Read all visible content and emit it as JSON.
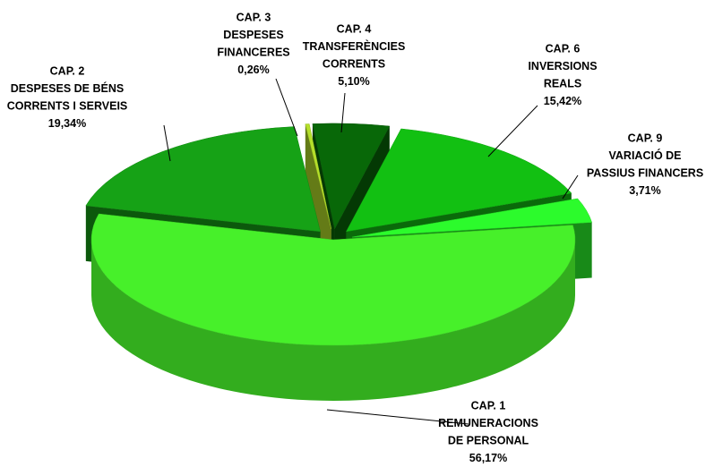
{
  "chart_data": {
    "type": "pie3d",
    "categories": [
      [
        "CAP. 1",
        "REMUNERACIONS",
        "DE PERSONAL"
      ],
      [
        "CAP. 2",
        "DESPESES DE BÉNS",
        "CORRENTS I SERVEIS"
      ],
      [
        "CAP. 3",
        "DESPESES",
        "FINANCERES"
      ],
      [
        "CAP. 4",
        "TRANSFERÈNCIES",
        "CORRENTS"
      ],
      [
        "CAP. 6",
        "INVERSIONS",
        "REALS"
      ],
      [
        "CAP. 9",
        "VARIACIÓ DE",
        "PASSIUS FINANCERS"
      ]
    ],
    "values": [
      56.17,
      19.34,
      0.26,
      5.1,
      15.42,
      3.71
    ],
    "value_labels": [
      "56,17%",
      "19,34%",
      "0,26%",
      "5,10%",
      "15,42%",
      "3,71%"
    ],
    "colors": [
      "#47f02a",
      "#16a216",
      "#b5e02a",
      "#086808",
      "#12c012",
      "#2cfb2c"
    ]
  }
}
